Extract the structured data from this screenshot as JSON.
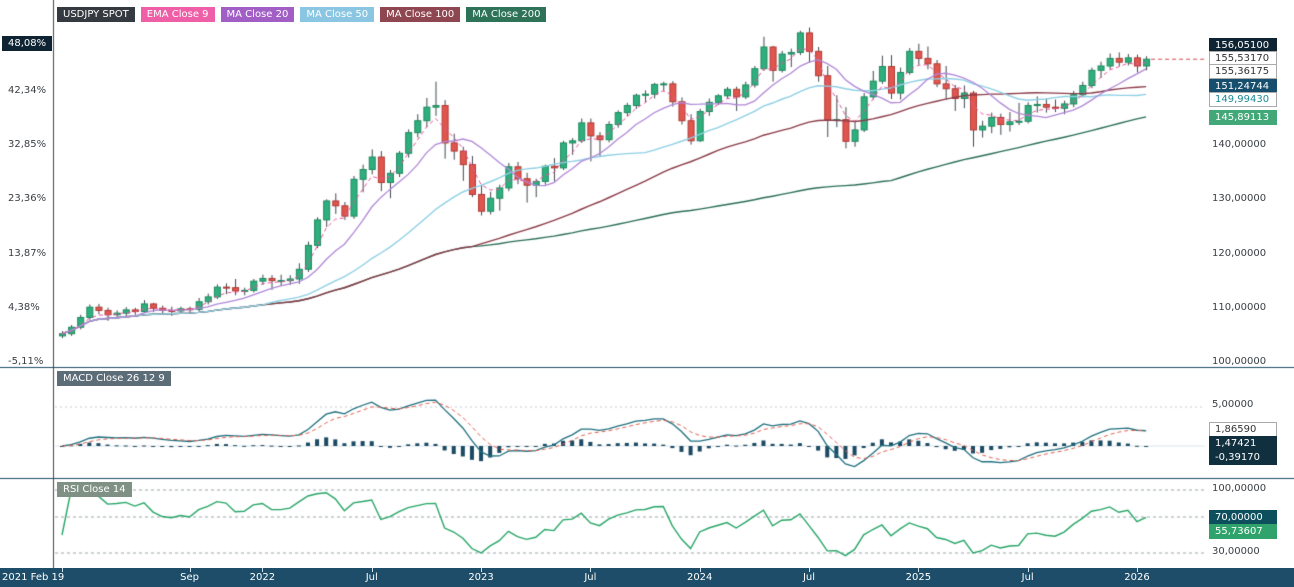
{
  "symbol_panel": {
    "legend": [
      {
        "label": "USDJPY SPOT",
        "bg": "#343a40",
        "fg": "#ffffff"
      },
      {
        "label": "EMA Close 9",
        "bg": "#ef5fa7",
        "fg": "#ffffff"
      },
      {
        "label": "MA Close 20",
        "bg": "#a15fc6",
        "fg": "#ffffff"
      },
      {
        "label": "MA Close 50",
        "bg": "#8ac6e2",
        "fg": "#ffffff"
      },
      {
        "label": "MA Close 100",
        "bg": "#8e4750",
        "fg": "#ffffff"
      },
      {
        "label": "MA Close 200",
        "bg": "#2e7258",
        "fg": "#ffffff"
      }
    ],
    "current_percent": "48,08%",
    "percent_labels": [
      "42,34%",
      "32,85%",
      "23,36%",
      "13,87%",
      "4,38%",
      "-5,11%"
    ],
    "price_labels": [
      "140,00000",
      "130,00000",
      "120,00000",
      "110,00000",
      "100,00000"
    ],
    "price_badges": [
      {
        "value": "156,05100",
        "bg": "#0f2433",
        "fg": "#ffffff",
        "bc": "#0f2433"
      },
      {
        "value": "155,53170",
        "bg": "#ffffff",
        "fg": "#333333",
        "bc": "#aaaaaa"
      },
      {
        "value": "155,36175",
        "bg": "#ffffff",
        "fg": "#333333",
        "bc": "#aaaaaa"
      },
      {
        "value": "151,24744",
        "bg": "#164e6e",
        "fg": "#ffffff",
        "bc": "#164e6e"
      },
      {
        "value": "149,99430",
        "bg": "#ffffff",
        "fg": "#1d8a96",
        "bc": "#aaaaaa"
      },
      {
        "value": "145,89113",
        "bg": "#43a878",
        "fg": "#ffffff",
        "bc": "#43a878"
      }
    ]
  },
  "macd_panel": {
    "legend": "MACD Close 26 12 9",
    "legend_bg": "#5d6d78",
    "gridline_label": "5,00000",
    "badges": [
      {
        "value": "1,86590",
        "bg": "#ffffff",
        "fg": "#333333",
        "bc": "#aaaaaa"
      },
      {
        "value": "1,47421",
        "bg": "#11303f",
        "fg": "#ffffff",
        "bc": "#11303f"
      },
      {
        "value": "-0,39170",
        "bg": "#11303f",
        "fg": "#ffffff",
        "bc": "#11303f"
      }
    ]
  },
  "rsi_panel": {
    "legend": "RSI Close 14",
    "legend_bg": "#7f9184",
    "top_label": "100,00000",
    "badges": [
      {
        "value": "70,00000",
        "bg": "#0e4f5e",
        "fg": "#ffffff",
        "bc": "#0e4f5e"
      },
      {
        "value": "55,73607",
        "bg": "#2fa36b",
        "fg": "#ffffff",
        "bc": "#2fa36b"
      }
    ],
    "bottom_label": "30,00000"
  },
  "time_axis": {
    "ticks": [
      {
        "label": "2021 Feb 19",
        "idx": 0,
        "align": "left"
      },
      {
        "label": "Sep",
        "idx": 14
      },
      {
        "label": "2022",
        "idx": 22
      },
      {
        "label": "Jul",
        "idx": 34
      },
      {
        "label": "2023",
        "idx": 46
      },
      {
        "label": "Jul",
        "idx": 58
      },
      {
        "label": "2024",
        "idx": 70
      },
      {
        "label": "Jul",
        "idx": 82
      },
      {
        "label": "2025",
        "idx": 94
      },
      {
        "label": "Jul",
        "idx": 106
      },
      {
        "label": "2026",
        "idx": 118
      }
    ]
  },
  "chart_data": {
    "type": "candlestick",
    "symbol": "USDJPY SPOT",
    "start_label": "2021 Feb 19",
    "price_ylim": [
      97,
      166
    ],
    "price_gridlines": [
      100,
      110,
      120,
      130,
      140,
      150
    ],
    "percent_gridlines": [
      -5.11,
      4.38,
      13.87,
      23.36,
      32.85,
      42.34
    ],
    "current": {
      "price": 156.051,
      "percent": 48.08
    },
    "candles": [
      [
        105.0,
        105.9,
        104.6,
        105.4
      ],
      [
        105.4,
        107.0,
        105.0,
        106.6
      ],
      [
        106.6,
        108.9,
        106.2,
        108.4
      ],
      [
        108.4,
        110.8,
        108.0,
        110.3
      ],
      [
        110.3,
        110.9,
        109.0,
        109.7
      ],
      [
        109.7,
        110.2,
        107.8,
        108.9
      ],
      [
        108.9,
        109.7,
        108.3,
        109.2
      ],
      [
        109.2,
        110.3,
        108.6,
        109.8
      ],
      [
        109.8,
        110.2,
        108.9,
        109.5
      ],
      [
        109.5,
        111.6,
        109.2,
        110.9
      ],
      [
        110.9,
        111.1,
        109.4,
        110.1
      ],
      [
        110.1,
        110.6,
        109.1,
        109.7
      ],
      [
        109.7,
        110.4,
        108.7,
        109.6
      ],
      [
        109.6,
        110.4,
        109.1,
        110.0
      ],
      [
        110.0,
        110.4,
        109.1,
        109.9
      ],
      [
        109.9,
        112.0,
        109.5,
        111.3
      ],
      [
        111.3,
        112.8,
        110.8,
        112.2
      ],
      [
        112.2,
        114.5,
        111.8,
        114.0
      ],
      [
        114.0,
        114.7,
        112.7,
        113.9
      ],
      [
        113.9,
        115.5,
        112.5,
        113.3
      ],
      [
        113.3,
        113.9,
        112.5,
        113.4
      ],
      [
        113.4,
        115.5,
        113.0,
        115.1
      ],
      [
        115.1,
        116.3,
        114.4,
        115.6
      ],
      [
        115.6,
        116.2,
        113.5,
        115.2
      ],
      [
        115.2,
        116.3,
        114.2,
        115.2
      ],
      [
        115.2,
        116.2,
        114.4,
        115.5
      ],
      [
        115.5,
        118.4,
        114.6,
        117.3
      ],
      [
        117.3,
        122.4,
        116.8,
        121.7
      ],
      [
        121.7,
        126.9,
        121.2,
        126.4
      ],
      [
        126.4,
        130.2,
        125.1,
        129.9
      ],
      [
        129.9,
        131.3,
        127.5,
        129.0
      ],
      [
        129.0,
        129.7,
        126.4,
        127.1
      ],
      [
        127.1,
        134.5,
        126.6,
        133.9
      ],
      [
        133.9,
        136.6,
        131.5,
        135.7
      ],
      [
        135.7,
        139.4,
        134.8,
        138.0
      ],
      [
        138.0,
        139.1,
        131.7,
        133.3
      ],
      [
        133.3,
        135.6,
        130.4,
        135.0
      ],
      [
        135.0,
        139.1,
        134.3,
        138.7
      ],
      [
        138.7,
        143.1,
        137.9,
        142.5
      ],
      [
        142.5,
        145.9,
        141.6,
        144.7
      ],
      [
        144.7,
        148.9,
        143.5,
        147.2
      ],
      [
        147.2,
        151.9,
        145.6,
        147.5
      ],
      [
        147.5,
        148.5,
        137.7,
        140.6
      ],
      [
        140.6,
        142.3,
        137.5,
        139.1
      ],
      [
        139.1,
        139.9,
        133.6,
        136.6
      ],
      [
        136.6,
        138.2,
        130.6,
        131.1
      ],
      [
        131.1,
        132.9,
        127.2,
        128.0
      ],
      [
        128.0,
        131.6,
        127.4,
        130.4
      ],
      [
        130.4,
        132.9,
        128.1,
        132.3
      ],
      [
        132.3,
        136.9,
        131.7,
        136.2
      ],
      [
        136.2,
        137.1,
        133.0,
        134.0
      ],
      [
        134.0,
        135.1,
        129.6,
        132.8
      ],
      [
        132.8,
        134.0,
        130.6,
        133.5
      ],
      [
        133.5,
        136.6,
        132.9,
        136.3
      ],
      [
        136.3,
        137.8,
        133.5,
        136.0
      ],
      [
        136.0,
        141.0,
        135.6,
        140.6
      ],
      [
        140.6,
        141.5,
        138.4,
        141.0
      ],
      [
        141.0,
        145.1,
        140.6,
        144.3
      ],
      [
        144.3,
        145.1,
        137.2,
        141.9
      ],
      [
        141.9,
        142.6,
        138.0,
        141.2
      ],
      [
        141.2,
        144.6,
        140.7,
        144.0
      ],
      [
        144.0,
        146.6,
        143.4,
        146.2
      ],
      [
        146.2,
        148.0,
        145.5,
        147.5
      ],
      [
        147.5,
        149.7,
        146.9,
        149.4
      ],
      [
        149.4,
        150.3,
        148.2,
        149.6
      ],
      [
        149.6,
        151.7,
        148.8,
        151.4
      ],
      [
        151.4,
        151.9,
        150.1,
        151.5
      ],
      [
        151.5,
        152.0,
        147.3,
        148.2
      ],
      [
        148.2,
        149.0,
        144.0,
        144.7
      ],
      [
        144.7,
        145.9,
        140.3,
        141.0
      ],
      [
        141.0,
        146.9,
        140.8,
        146.4
      ],
      [
        146.4,
        148.8,
        145.6,
        148.1
      ],
      [
        148.1,
        149.6,
        147.6,
        149.3
      ],
      [
        149.3,
        150.9,
        148.9,
        150.5
      ],
      [
        150.5,
        151.0,
        146.5,
        149.1
      ],
      [
        149.1,
        151.9,
        148.7,
        151.3
      ],
      [
        151.3,
        154.8,
        150.8,
        154.3
      ],
      [
        154.3,
        160.2,
        153.9,
        158.3
      ],
      [
        158.3,
        158.5,
        151.9,
        154.0
      ],
      [
        154.0,
        157.6,
        153.6,
        157.0
      ],
      [
        157.0,
        158.0,
        154.6,
        157.3
      ],
      [
        157.3,
        161.3,
        156.8,
        160.9
      ],
      [
        160.9,
        161.9,
        155.4,
        157.5
      ],
      [
        157.5,
        158.3,
        151.9,
        153.0
      ],
      [
        153.0,
        154.8,
        141.7,
        144.8
      ],
      [
        144.8,
        149.4,
        143.5,
        144.9
      ],
      [
        144.9,
        147.2,
        139.6,
        140.9
      ],
      [
        140.9,
        144.7,
        139.9,
        143.0
      ],
      [
        143.0,
        149.8,
        142.6,
        149.1
      ],
      [
        149.1,
        153.9,
        148.6,
        152.0
      ],
      [
        152.0,
        156.7,
        151.5,
        154.7
      ],
      [
        154.7,
        156.8,
        148.7,
        149.8
      ],
      [
        149.8,
        154.5,
        148.6,
        153.6
      ],
      [
        153.6,
        158.1,
        153.2,
        157.5
      ],
      [
        157.5,
        158.9,
        155.0,
        156.2
      ],
      [
        156.2,
        158.4,
        154.2,
        155.2
      ],
      [
        155.2,
        155.9,
        150.9,
        151.5
      ],
      [
        151.5,
        154.8,
        148.6,
        150.6
      ],
      [
        150.6,
        151.3,
        146.5,
        148.8
      ],
      [
        148.8,
        151.2,
        147.0,
        149.8
      ],
      [
        149.8,
        150.2,
        139.9,
        143.0
      ],
      [
        143.0,
        144.7,
        141.6,
        143.7
      ],
      [
        143.7,
        146.2,
        142.4,
        145.3
      ],
      [
        145.3,
        146.0,
        142.1,
        144.0
      ],
      [
        144.0,
        146.3,
        142.7,
        144.5
      ],
      [
        144.5,
        148.0,
        143.9,
        144.6
      ],
      [
        144.6,
        148.1,
        144.2,
        147.5
      ],
      [
        147.5,
        149.2,
        146.2,
        147.7
      ],
      [
        147.7,
        148.8,
        146.2,
        147.2
      ],
      [
        147.2,
        148.6,
        146.3,
        147.0
      ],
      [
        147.0,
        148.4,
        145.9,
        147.8
      ],
      [
        147.8,
        150.2,
        147.2,
        149.5
      ],
      [
        149.5,
        151.9,
        149.0,
        151.2
      ],
      [
        151.2,
        154.5,
        150.7,
        154.0
      ],
      [
        154.0,
        155.6,
        152.6,
        154.8
      ],
      [
        154.8,
        157.1,
        154.2,
        156.2
      ],
      [
        156.2,
        157.3,
        154.7,
        155.5
      ],
      [
        155.5,
        157.0,
        154.9,
        156.3
      ],
      [
        156.3,
        156.9,
        153.6,
        154.8
      ],
      [
        154.8,
        156.6,
        154.0,
        156.05
      ]
    ],
    "overlays": [
      {
        "name": "EMA Close 9",
        "period": 9,
        "color": "#e8559b",
        "style": "dashed",
        "last_value": 155.5317
      },
      {
        "name": "MA Close 20",
        "period": 20,
        "color": "#b087d8",
        "style": "solid",
        "last_value": 155.36175
      },
      {
        "name": "MA Close 50",
        "period": 50,
        "color": "#8ecfe4",
        "style": "solid",
        "last_value": 151.24744
      },
      {
        "name": "MA Close 100",
        "period": 100,
        "color": "#8a3b49",
        "style": "solid",
        "last_value": 149.9943
      },
      {
        "name": "MA Close 200",
        "period": 200,
        "color": "#2a6e55",
        "style": "solid",
        "last_value": 145.89113
      }
    ],
    "macd": {
      "label": "MACD Close 26 12 9",
      "params": [
        26,
        12,
        9
      ],
      "gridline": 5,
      "last": {
        "macd": 1.47421,
        "signal": 1.8659,
        "histogram": -0.3917
      }
    },
    "rsi": {
      "label": "RSI Close 14",
      "period": 14,
      "thresholds": [
        100,
        70,
        30
      ],
      "last": 55.73607
    },
    "style": {
      "candle_up": "#2fae7e",
      "candle_down": "#e0564e",
      "wick": "#3f4850",
      "macd_line": "#1f6f7e",
      "signal_line": "#e0614f",
      "histogram": "#1b4a63",
      "rsi_line": "#27a567",
      "last_price_line": "#cf4a52"
    }
  }
}
